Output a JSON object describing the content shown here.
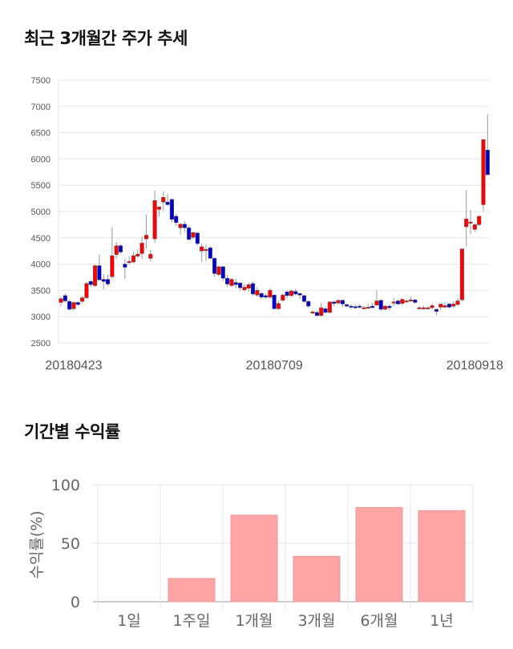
{
  "section1_title": "최근 3개월간 주가 추세",
  "section2_title": "기간별 수익률",
  "colors": {
    "up": "#ff0000",
    "down": "#0000cc",
    "bar": "#ffa5a5",
    "grid": "#e6e6e6"
  },
  "chart_data": [
    {
      "type": "candlestick",
      "title": "최근 3개월간 주가 추세",
      "ylim": [
        2500,
        7500
      ],
      "yticks": [
        2500,
        3000,
        3500,
        4000,
        4500,
        5000,
        5500,
        6000,
        6500,
        7000,
        7500
      ],
      "x_labels": [
        {
          "index": 3,
          "label": "20180423"
        },
        {
          "index": 50,
          "label": "20180709"
        },
        {
          "index": 97,
          "label": "20180918"
        }
      ],
      "ohlc": [
        [
          3270,
          3380,
          3200,
          3340
        ],
        [
          3400,
          3440,
          3260,
          3300
        ],
        [
          3290,
          3320,
          3120,
          3140
        ],
        [
          3150,
          3290,
          3120,
          3270
        ],
        [
          3270,
          3300,
          3210,
          3230
        ],
        [
          3290,
          3400,
          3260,
          3360
        ],
        [
          3360,
          3660,
          3330,
          3630
        ],
        [
          3670,
          3700,
          3560,
          3610
        ],
        [
          3590,
          3990,
          3560,
          3970
        ],
        [
          3970,
          4180,
          3680,
          3700
        ],
        [
          3710,
          3810,
          3520,
          3670
        ],
        [
          3710,
          3800,
          3580,
          3620
        ],
        [
          3760,
          4700,
          3720,
          4160
        ],
        [
          4180,
          4420,
          4100,
          4350
        ],
        [
          4350,
          4380,
          4200,
          4230
        ],
        [
          4000,
          4100,
          3720,
          3940
        ],
        [
          4030,
          4150,
          3990,
          4050
        ],
        [
          4040,
          4240,
          4020,
          4160
        ],
        [
          4150,
          4280,
          4120,
          4190
        ],
        [
          4200,
          4520,
          4100,
          4400
        ],
        [
          4480,
          4950,
          4290,
          4550
        ],
        [
          4110,
          4270,
          4050,
          4190
        ],
        [
          4480,
          5400,
          4400,
          5210
        ],
        [
          5040,
          5090,
          4900,
          5090
        ],
        [
          5180,
          5380,
          5020,
          5270
        ],
        [
          5180,
          5330,
          5110,
          5130
        ],
        [
          5230,
          5250,
          4800,
          4850
        ],
        [
          4910,
          4950,
          4720,
          4790
        ],
        [
          4690,
          4780,
          4560,
          4760
        ],
        [
          4760,
          4820,
          4600,
          4690
        ],
        [
          4690,
          4730,
          4450,
          4470
        ],
        [
          4510,
          4620,
          4470,
          4600
        ],
        [
          4590,
          4620,
          4350,
          4390
        ],
        [
          4250,
          4390,
          4040,
          4330
        ],
        [
          4280,
          4370,
          4060,
          4280
        ],
        [
          4310,
          4340,
          4090,
          4110
        ],
        [
          4110,
          4130,
          3760,
          3820
        ],
        [
          3800,
          3970,
          3770,
          3950
        ],
        [
          3950,
          3960,
          3680,
          3730
        ],
        [
          3730,
          3800,
          3560,
          3620
        ],
        [
          3590,
          3740,
          3560,
          3710
        ],
        [
          3650,
          3720,
          3540,
          3610
        ],
        [
          3640,
          3660,
          3500,
          3550
        ],
        [
          3510,
          3620,
          3480,
          3560
        ],
        [
          3540,
          3650,
          3470,
          3610
        ],
        [
          3630,
          3670,
          3400,
          3430
        ],
        [
          3410,
          3560,
          3380,
          3500
        ],
        [
          3440,
          3470,
          3330,
          3370
        ],
        [
          3400,
          3440,
          3340,
          3370
        ],
        [
          3370,
          3540,
          3340,
          3500
        ],
        [
          3410,
          3430,
          3140,
          3150
        ],
        [
          3150,
          3300,
          3130,
          3250
        ],
        [
          3310,
          3440,
          3280,
          3410
        ],
        [
          3470,
          3500,
          3340,
          3400
        ],
        [
          3400,
          3510,
          3370,
          3490
        ],
        [
          3480,
          3530,
          3400,
          3430
        ],
        [
          3440,
          3460,
          3340,
          3410
        ],
        [
          3400,
          3420,
          3260,
          3290
        ],
        [
          3290,
          3310,
          3170,
          3200
        ],
        [
          3080,
          3120,
          3040,
          3090
        ],
        [
          3080,
          3110,
          3000,
          3020
        ],
        [
          3020,
          3260,
          3000,
          3170
        ],
        [
          3150,
          3190,
          3060,
          3080
        ],
        [
          3080,
          3290,
          3060,
          3280
        ],
        [
          3280,
          3300,
          3200,
          3250
        ],
        [
          3260,
          3330,
          3230,
          3310
        ],
        [
          3310,
          3330,
          3180,
          3240
        ],
        [
          3230,
          3250,
          3170,
          3200
        ],
        [
          3200,
          3230,
          3140,
          3180
        ],
        [
          3190,
          3230,
          3150,
          3170
        ],
        [
          3200,
          3240,
          3160,
          3180
        ],
        [
          3170,
          3210,
          3150,
          3170
        ],
        [
          3180,
          3240,
          3160,
          3180
        ],
        [
          3200,
          3260,
          3160,
          3170
        ],
        [
          3220,
          3500,
          3200,
          3300
        ],
        [
          3310,
          3330,
          3110,
          3140
        ],
        [
          3140,
          3220,
          3120,
          3200
        ],
        [
          3200,
          3240,
          3120,
          3170
        ],
        [
          3280,
          3360,
          3200,
          3280
        ],
        [
          3300,
          3330,
          3230,
          3240
        ],
        [
          3250,
          3350,
          3220,
          3330
        ],
        [
          3300,
          3330,
          3280,
          3300
        ],
        [
          3300,
          3380,
          3280,
          3320
        ],
        [
          3320,
          3340,
          3250,
          3270
        ],
        [
          3170,
          3210,
          3140,
          3170
        ],
        [
          3170,
          3210,
          3140,
          3170
        ],
        [
          3170,
          3190,
          3140,
          3170
        ],
        [
          3170,
          3250,
          3140,
          3210
        ],
        [
          3140,
          3150,
          3030,
          3100
        ],
        [
          3180,
          3250,
          3120,
          3240
        ],
        [
          3180,
          3270,
          3160,
          3210
        ],
        [
          3240,
          3260,
          3160,
          3180
        ],
        [
          3200,
          3290,
          3160,
          3240
        ],
        [
          3230,
          3350,
          3210,
          3300
        ],
        [
          3320,
          4290,
          3290,
          4290
        ],
        [
          4710,
          5410,
          4330,
          4860
        ],
        [
          4800,
          5030,
          4570,
          4800
        ],
        [
          4660,
          4780,
          4610,
          4750
        ],
        [
          4750,
          4920,
          4720,
          4910
        ],
        [
          5130,
          6370,
          5010,
          6370
        ],
        [
          6170,
          6850,
          5700,
          5700
        ]
      ]
    },
    {
      "type": "bar",
      "title": "기간별 수익률",
      "categories": [
        "1일",
        "1주일",
        "1개월",
        "3개월",
        "6개월",
        "1년"
      ],
      "values": [
        0,
        19.9,
        74.0,
        38.8,
        80.6,
        77.9
      ],
      "ylabel": "수익률(%)",
      "ylim": [
        0,
        100
      ],
      "yticks": [
        0,
        50,
        100
      ]
    }
  ]
}
